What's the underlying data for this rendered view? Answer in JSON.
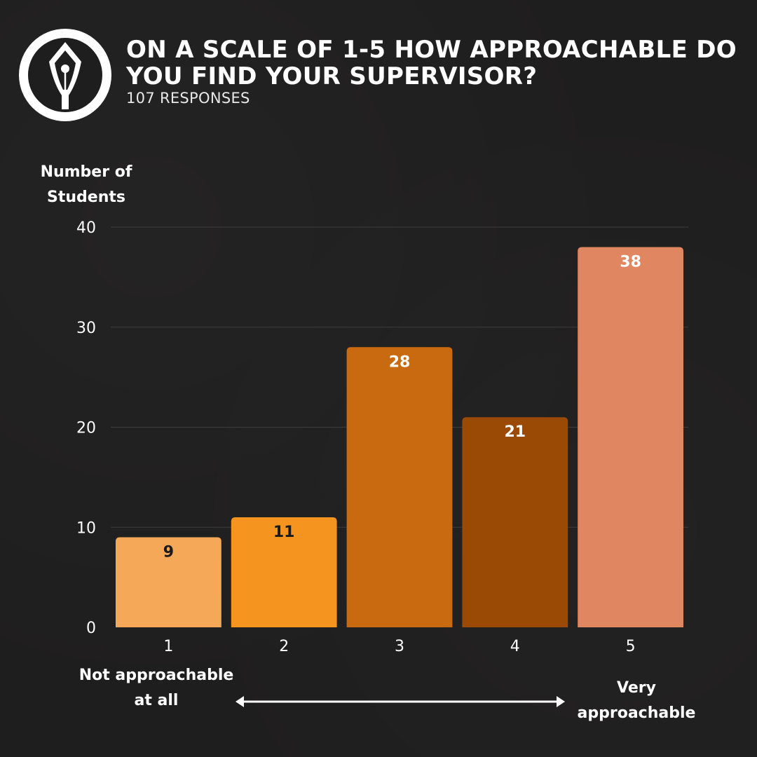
{
  "header": {
    "title": "ON A SCALE OF 1-5 HOW APPROACHABLE DO YOU FIND YOUR SUPERVISOR?",
    "subtitle": "107 RESPONSES"
  },
  "scale_labels": {
    "low": "Not approachable at all",
    "high": "Very approachable"
  },
  "chart_data": {
    "type": "bar",
    "ylabel": "Number of Students",
    "xlabel": "",
    "categories": [
      "1",
      "2",
      "3",
      "4",
      "5"
    ],
    "values": [
      9,
      11,
      28,
      21,
      38
    ],
    "ylim": [
      0,
      40
    ],
    "yticks": [
      0,
      10,
      20,
      30,
      40
    ],
    "grid": true,
    "colors": [
      "#f5a958",
      "#f5951f",
      "#c96a10",
      "#9b4a06",
      "#e08660"
    ],
    "label_colors": [
      "#1a1a1a",
      "#1a1a1a",
      "#ffffff",
      "#ffffff",
      "#ffffff"
    ]
  }
}
